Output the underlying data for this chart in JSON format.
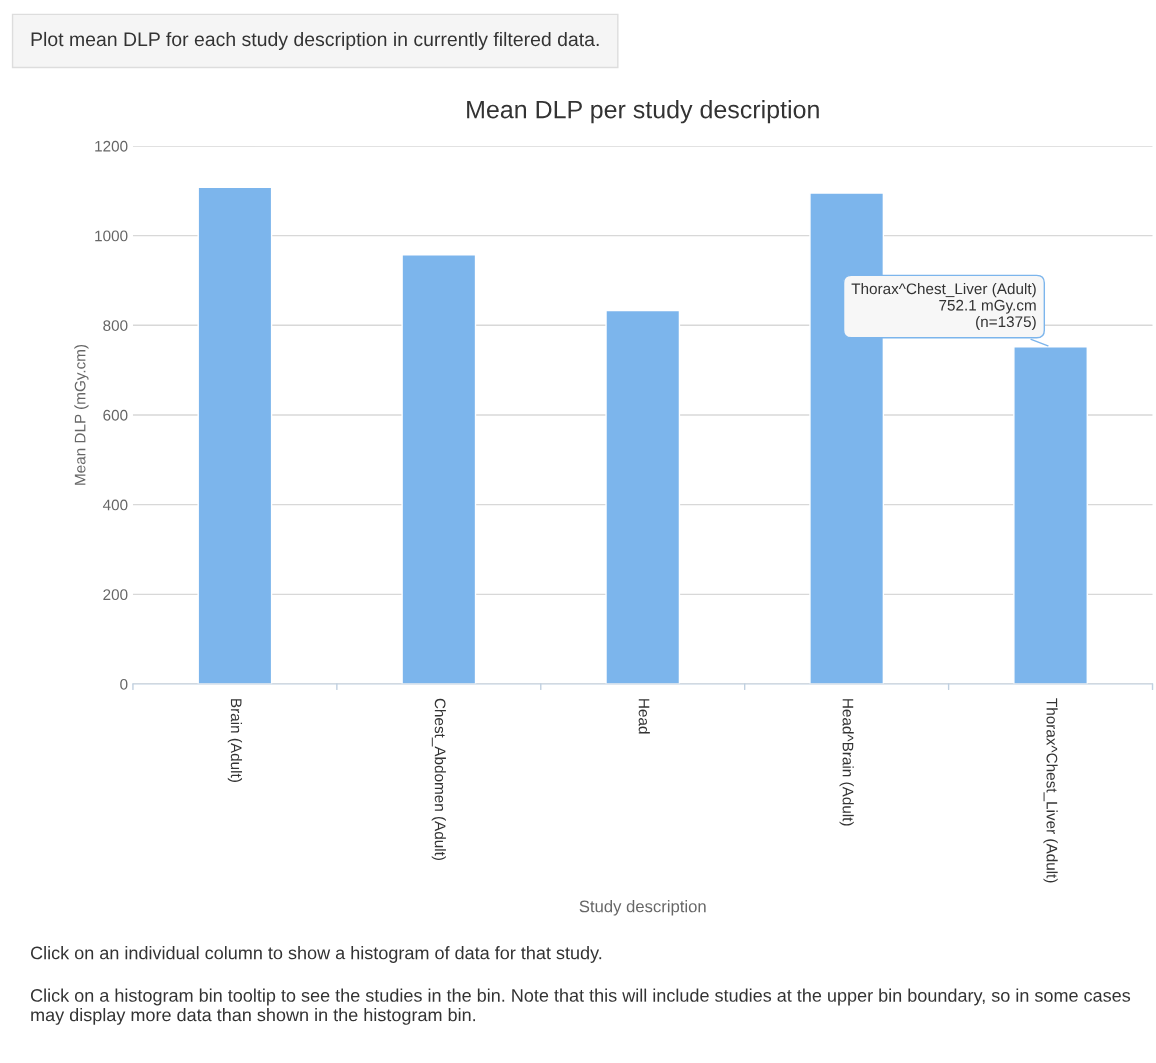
{
  "chart_data": {
    "type": "bar",
    "title": "Mean DLP per study description",
    "xlabel": "Study description",
    "ylabel": "Mean DLP (mGy.cm)",
    "categories": [
      "Brain (Adult)",
      "Chest_Abdomen (Adult)",
      "Head",
      "Head^Brain (Adult)",
      "Thorax^Chest_Liver (Adult)"
    ],
    "values": [
      1108,
      957,
      833,
      1095,
      752.1
    ],
    "color": "#7cb5ec",
    "ylim": [
      0,
      1200
    ],
    "yticks": [
      0,
      200,
      400,
      600,
      800,
      1000,
      1200
    ],
    "grid": "y",
    "legend": false,
    "annotations": [
      "Plot mean DLP for each study description in currently filtered data.",
      {
        "text": "Thorax^Chest_Liver (Adult)\n752.1 mGy.cm\n(n=1375)",
        "x": "Thorax^Chest_Liver (Adult)",
        "y": 752.1
      },
      "Click on an individual column to show a histogram of data for that study.",
      "Click on a histogram bin tooltip to see the studies in the bin. Note that this will include studies at the upper bin boundary, so in some cases may display more data than shown in the histogram bin."
    ]
  }
}
